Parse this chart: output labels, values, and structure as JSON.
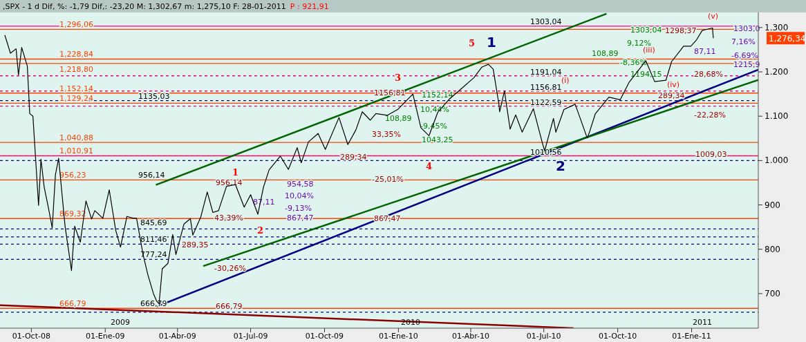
{
  "chart_data": {
    "type": "line",
    "title": ",SPX -  1 d Dif, %: -1,79 Dif,: -23,20 M: 1,302,67 m: 1,275,10 F: 28-01-2011",
    "subtitle": "P : 921,91",
    "xlim": [
      "2008-08-23",
      "2011-03-25"
    ],
    "ylim": [
      622,
      1334
    ],
    "xticks": [
      {
        "value": "2008-10-01",
        "label": "01-Oct-08"
      },
      {
        "value": "2009-01-01",
        "label": "01-Ene-09"
      },
      {
        "value": "2009-04-01",
        "label": "01-Abr-09"
      },
      {
        "value": "2009-07-01",
        "label": "01-Jul-09"
      },
      {
        "value": "2009-10-01",
        "label": "01-Oct-09"
      },
      {
        "value": "2010-01-01",
        "label": "01-Ene-10"
      },
      {
        "value": "2010-04-01",
        "label": "01-Abr-10"
      },
      {
        "value": "2010-07-01",
        "label": "01-Jul-10"
      },
      {
        "value": "2010-10-01",
        "label": "01-Oct-10"
      },
      {
        "value": "2011-01-01",
        "label": "01-Ene-11"
      }
    ],
    "yticks": [
      700,
      800,
      900,
      {
        "value": 1000,
        "label": "1.000"
      },
      {
        "value": 1100,
        "label": "1.100"
      },
      {
        "value": 1200,
        "label": "1.200"
      },
      {
        "value": 1300,
        "label": "1.300"
      }
    ],
    "grid": false,
    "series": [
      {
        "color": "#000000",
        "x": [
          "2008-08-29",
          "2008-09-05",
          "2008-09-12",
          "2008-09-15",
          "2008-09-19",
          "2008-09-26",
          "2008-09-29",
          "2008-10-03",
          "2008-10-10",
          "2008-10-13",
          "2008-10-17",
          "2008-10-22",
          "2008-10-27",
          "2008-10-31",
          "2008-11-04",
          "2008-11-12",
          "2008-11-20",
          "2008-11-24",
          "2008-12-01",
          "2008-12-08",
          "2008-12-15",
          "2008-12-19",
          "2008-12-29",
          "2009-01-06",
          "2009-01-14",
          "2009-01-20",
          "2009-01-28",
          "2009-02-05",
          "2009-02-09",
          "2009-02-17",
          "2009-02-23",
          "2009-03-02",
          "2009-03-06",
          "2009-03-09",
          "2009-03-13",
          "2009-03-20",
          "2009-03-26",
          "2009-03-30",
          "2009-04-09",
          "2009-04-17",
          "2009-04-20",
          "2009-04-30",
          "2009-05-08",
          "2009-05-15",
          "2009-05-22",
          "2009-06-01",
          "2009-06-12",
          "2009-06-23",
          "2009-07-01",
          "2009-07-10",
          "2009-07-17",
          "2009-07-24",
          "2009-08-07",
          "2009-08-17",
          "2009-08-28",
          "2009-09-02",
          "2009-09-11",
          "2009-09-23",
          "2009-10-02",
          "2009-10-19",
          "2009-10-30",
          "2009-11-09",
          "2009-11-17",
          "2009-11-27",
          "2009-12-04",
          "2009-12-18",
          "2009-12-31",
          "2010-01-19",
          "2010-01-29",
          "2010-02-08",
          "2010-02-19",
          "2010-03-05",
          "2010-03-19",
          "2010-04-05",
          "2010-04-15",
          "2010-04-23",
          "2010-04-29",
          "2010-05-06",
          "2010-05-07",
          "2010-05-13",
          "2010-05-20",
          "2010-05-27",
          "2010-06-04",
          "2010-06-18",
          "2010-06-29",
          "2010-07-02",
          "2010-07-13",
          "2010-07-16",
          "2010-07-26",
          "2010-08-09",
          "2010-08-24",
          "2010-08-27",
          "2010-09-03",
          "2010-09-20",
          "2010-10-04",
          "2010-10-15",
          "2010-11-05",
          "2010-11-16",
          "2010-11-30",
          "2010-12-07",
          "2010-12-22",
          "2010-12-31",
          "2011-01-07",
          "2011-01-14",
          "2011-01-18",
          "2011-01-27",
          "2011-01-28"
        ],
        "values": [
          1283,
          1242,
          1252,
          1193,
          1255,
          1213,
          1106,
          1100,
          899,
          1003,
          940,
          896,
          848,
          968,
          1005,
          852,
          752,
          852,
          816,
          909,
          868,
          887,
          870,
          934,
          843,
          805,
          874,
          870,
          870,
          789,
          743,
          700,
          683,
          677,
          756,
          768,
          833,
          788,
          857,
          869,
          832,
          873,
          929,
          883,
          887,
          942,
          946,
          895,
          923,
          879,
          940,
          979,
          1010,
          980,
          1029,
          995,
          1042,
          1061,
          1025,
          1097,
          1036,
          1069,
          1110,
          1091,
          1106,
          1102,
          1115,
          1150,
          1074,
          1056,
          1109,
          1138,
          1160,
          1187,
          1211,
          1217,
          1206,
          1128,
          1110,
          1157,
          1071,
          1103,
          1064,
          1117,
          1041,
          1022,
          1095,
          1064,
          1115,
          1127,
          1051,
          1065,
          1105,
          1143,
          1137,
          1176,
          1225,
          1178,
          1181,
          1223,
          1258,
          1258,
          1272,
          1293,
          1295,
          1299,
          1276
        ]
      },
      {
        "color": "#006400",
        "x": [
          "2009-03-05",
          "2010-09-17"
        ],
        "values": [
          945,
          1331
        ]
      },
      {
        "color": "#000080",
        "x": [
          "2009-03-05",
          "2011-03-25"
        ],
        "values": [
          670,
          1205
        ]
      },
      {
        "color": "#006400",
        "x": [
          "2009-05-03",
          "2011-03-25"
        ],
        "values": [
          762,
          1182
        ]
      },
      {
        "color": "#8b0000",
        "x": [
          "2008-08-23",
          "2010-08-07"
        ],
        "values": [
          674,
          622
        ]
      }
    ],
    "ref_lines": [
      {
        "axis": "y",
        "value": 1296.06,
        "label": "1,296,06",
        "color": "#ff4000"
      },
      {
        "axis": "y",
        "value": 1228.84,
        "label": "1,228,84",
        "color": "#ff4000"
      },
      {
        "axis": "y",
        "value": 1218.8,
        "label": "1,218,80",
        "color": "#ff4000"
      },
      {
        "axis": "y",
        "value": 1152.14,
        "label": "1,152,14",
        "color": "#ff4000"
      },
      {
        "axis": "y",
        "value": 1129.24,
        "label": "1,129,24",
        "color": "#ff4000"
      },
      {
        "axis": "y",
        "value": 1040.88,
        "label": "1,040,88",
        "color": "#ff4000"
      },
      {
        "axis": "y",
        "value": 1010.91,
        "label": "1,010,91",
        "color": "#ff4000"
      },
      {
        "axis": "y",
        "value": 956.23,
        "label": "956,23",
        "color": "#ff4000"
      },
      {
        "axis": "y",
        "value": 869.32,
        "label": "869,32",
        "color": "#ff4000"
      },
      {
        "axis": "y",
        "value": 666.79,
        "label": "666,79",
        "color": "#ff4000"
      },
      {
        "axis": "y",
        "value": 1135.03,
        "color": "#000080",
        "line_style": "dashed"
      },
      {
        "axis": "y",
        "value": 1000,
        "color": "#000080",
        "line_style": "dashed"
      },
      {
        "axis": "y",
        "value": 845.69,
        "color": "#000080",
        "line_style": "dashed"
      },
      {
        "axis": "y",
        "value": 828,
        "color": "#000080",
        "line_style": "dashed"
      },
      {
        "axis": "y",
        "value": 811.46,
        "color": "#000080",
        "line_style": "dashed"
      },
      {
        "axis": "y",
        "value": 777.24,
        "color": "#000080",
        "line_style": "dashed"
      },
      {
        "axis": "y",
        "value": 658,
        "color": "#000080",
        "line_style": "dashed"
      },
      {
        "axis": "y",
        "value": 1303.04,
        "color": "#ff0080"
      },
      {
        "axis": "y",
        "value": 1191.04,
        "color": "#ff0080",
        "line_style": "dashed"
      },
      {
        "axis": "y",
        "value": 1156.81,
        "color": "#ff0080",
        "line_style": "dashed"
      },
      {
        "axis": "y",
        "value": 1122.59,
        "color": "#ff0080",
        "line_style": "dashed"
      },
      {
        "axis": "y",
        "value": 1010.56,
        "color": "#ff0080"
      }
    ],
    "annotations": [
      "1135,03",
      "956,14",
      "845,69",
      "811,46",
      "777,24",
      "666,79",
      "956,14",
      "43,39%",
      "289,35",
      "-30,26%",
      "666,79",
      "1",
      "2",
      "954,58",
      "10,04%",
      "-9,13%",
      "867,47",
      "87,11",
      "1156,81",
      "33,35%",
      "289,34",
      "-25,01%",
      "867,47",
      "3",
      "4",
      "5",
      "1",
      "2",
      "1152,14",
      "108,89",
      "10,44%",
      "-9,45%",
      "1043,25",
      "1303,04",
      "9,12%",
      "108,89",
      "-8,36%",
      "1194,15",
      "1303,04",
      "1191,04",
      "1156,81",
      "1122,59",
      "1010,56",
      "(i)",
      "(iii)",
      "(iv)",
      "(v)",
      "1298,37",
      "289,34",
      "28,68%",
      "-22,28%",
      "1009,03",
      "1303,0",
      "7,16%",
      "87,11",
      "-6,69%",
      "1215,9",
      "2009",
      "2010",
      "2011",
      "1,276,34"
    ]
  }
}
